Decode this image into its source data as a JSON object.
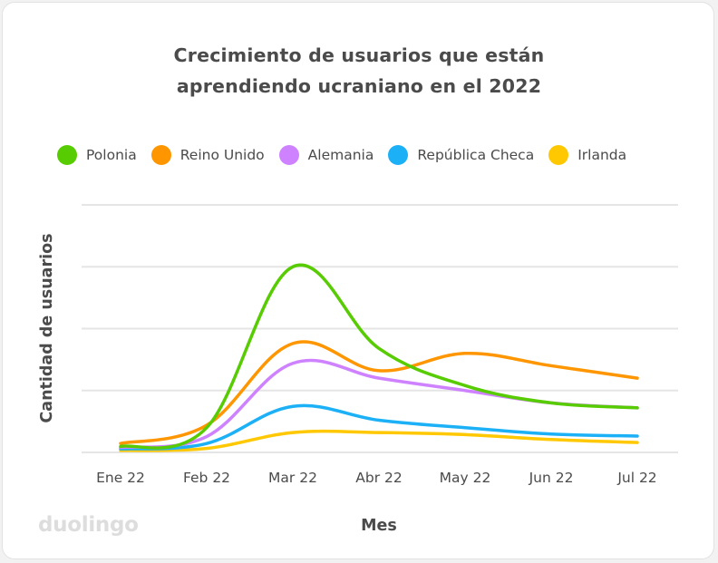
{
  "chart_data": {
    "type": "line",
    "title_lines": [
      "Crecimiento de usuarios que están",
      "aprendiendo ucraniano en el 2022"
    ],
    "xlabel": "Mes",
    "ylabel": "Cantidad de usuarios",
    "categories": [
      "Ene 22",
      "Feb 22",
      "Mar 22",
      "Abr 22",
      "May 22",
      "Jun 22",
      "Jul 22"
    ],
    "ylim": [
      0,
      5
    ],
    "y_tick_labels_shown": false,
    "grid": true,
    "legend_position": "top",
    "series": [
      {
        "name": "Polonia",
        "color": "#58cc02",
        "values": [
          0.12,
          0.5,
          3.75,
          2.1,
          1.35,
          1.0,
          0.9
        ]
      },
      {
        "name": "Reino Unido",
        "color": "#ff9600",
        "values": [
          0.18,
          0.55,
          2.2,
          1.65,
          2.0,
          1.75,
          1.5
        ]
      },
      {
        "name": "Alemania",
        "color": "#ce82ff",
        "values": [
          0.1,
          0.32,
          1.8,
          1.5,
          1.25,
          1.0,
          0.9
        ]
      },
      {
        "name": "República Checa",
        "color": "#1cb0f6",
        "values": [
          0.07,
          0.18,
          0.93,
          0.65,
          0.5,
          0.37,
          0.33
        ]
      },
      {
        "name": "Irlanda",
        "color": "#ffc800",
        "values": [
          0.04,
          0.08,
          0.4,
          0.4,
          0.36,
          0.26,
          0.2
        ]
      }
    ]
  },
  "branding": {
    "logo_text": "duolingo"
  }
}
